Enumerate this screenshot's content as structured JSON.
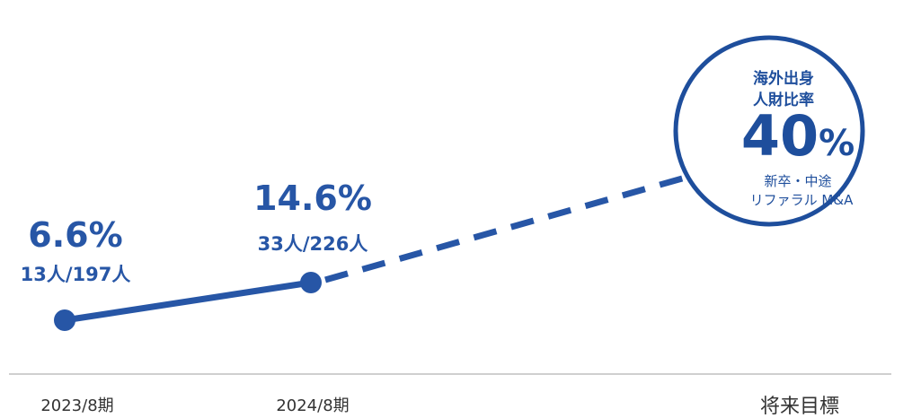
{
  "chart_data": {
    "type": "line",
    "categories": [
      "2023/8期",
      "2024/8期",
      "将来目標"
    ],
    "series": [
      {
        "values": [
          6.6,
          14.6,
          40
        ],
        "labels": [
          "6.6%",
          "14.6%",
          "40%"
        ],
        "counts": [
          "13人/197人",
          "33人/226人"
        ]
      }
    ],
    "target": {
      "title_line1": "海外出身",
      "title_line2": "人財比率",
      "value_label": "40",
      "unit": "%",
      "sub_line1": "新卒・中途",
      "sub_line2": "リファラル M&A"
    },
    "colors": {
      "line": "#2756a6",
      "target": "#1e4e9c",
      "axis": "#bfbfbf"
    }
  }
}
